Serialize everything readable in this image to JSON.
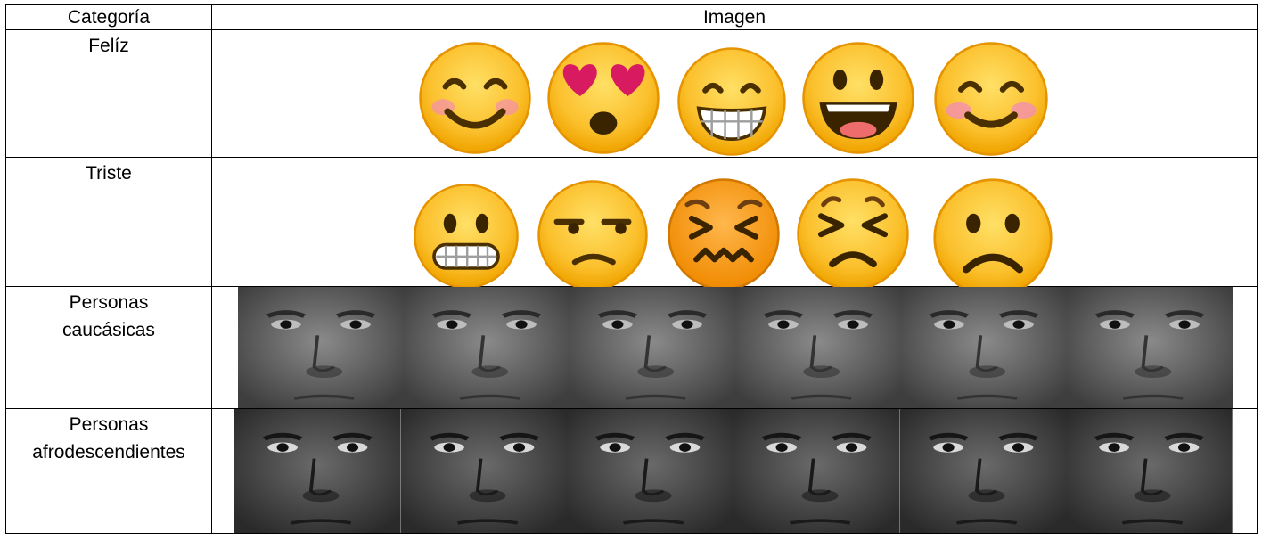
{
  "table": {
    "headers": {
      "category": "Categoría",
      "image": "Imagen"
    },
    "rows": [
      {
        "category": "Felíz",
        "type": "emoji",
        "items": [
          "smiling-blush-face-icon",
          "heart-eyes-face-icon",
          "grinning-teeth-face-icon",
          "open-mouth-smile-face-icon",
          "smiling-blush-face-icon"
        ]
      },
      {
        "category": "Triste",
        "type": "emoji",
        "items": [
          "grimacing-face-icon",
          "unamused-face-icon",
          "confounded-face-icon",
          "persevering-face-icon",
          "frowning-face-icon"
        ]
      },
      {
        "category_lines": [
          "Personas",
          "caucásicas"
        ],
        "type": "photos",
        "count": 6
      },
      {
        "category_lines": [
          "Personas",
          "afrodescendientes"
        ],
        "type": "photos",
        "count": 6
      }
    ]
  },
  "colors": {
    "emoji_fill": "#FBC02D",
    "emoji_edge": "#E59400",
    "border": "#000000"
  }
}
